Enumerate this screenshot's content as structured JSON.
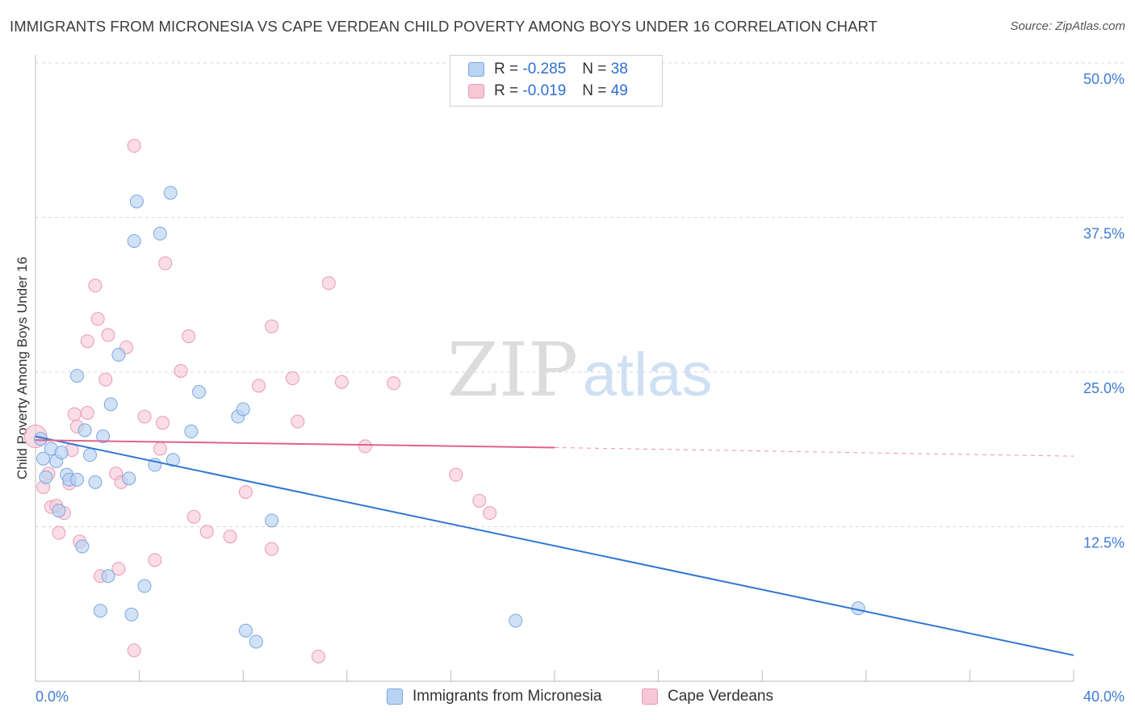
{
  "header": {
    "title": "IMMIGRANTS FROM MICRONESIA VS CAPE VERDEAN CHILD POVERTY AMONG BOYS UNDER 16 CORRELATION CHART",
    "source": "Source: ZipAtlas.com"
  },
  "watermark": {
    "zip": "ZIP",
    "atlas": "atlas"
  },
  "stats_legend": {
    "r_label": "R =",
    "n_label": "N =",
    "rows": [
      {
        "r": "-0.285",
        "n": "38"
      },
      {
        "r": "-0.019",
        "n": "49"
      }
    ]
  },
  "colors": {
    "blue_fill": "#b9d3f3",
    "blue_stroke": "#7aa7e0",
    "blue_line": "#3276d2",
    "pink_fill": "#f7c7d6",
    "pink_stroke": "#e99ab4",
    "pink_line": "#e0628e",
    "tick_text": "#3f7bd6",
    "grid": "#d9d9d9"
  },
  "chart_data": {
    "type": "scatter",
    "title": "IMMIGRANTS FROM MICRONESIA VS CAPE VERDEAN CHILD POVERTY AMONG BOYS UNDER 16 CORRELATION CHART",
    "xlabel": "",
    "ylabel": "Child Poverty Among Boys Under 16",
    "xlim": [
      0,
      40
    ],
    "ylim": [
      0,
      50
    ],
    "x_tick_labels": [
      "0.0%",
      "40.0%"
    ],
    "y_tick_labels": [
      "12.5%",
      "25.0%",
      "37.5%",
      "50.0%"
    ],
    "y_ticks": [
      12.5,
      25.0,
      37.5,
      50.0
    ],
    "grid": true,
    "legend_position": "bottom",
    "series": [
      {
        "name": "Immigrants from Micronesia",
        "color": "blue",
        "trend": {
          "x": [
            0,
            40
          ],
          "y": [
            19.8,
            2.1
          ],
          "dashed_from": null
        },
        "points": [
          [
            0.2,
            19.6
          ],
          [
            0.3,
            18.0
          ],
          [
            0.4,
            16.5
          ],
          [
            0.6,
            18.8
          ],
          [
            0.8,
            17.8
          ],
          [
            0.9,
            13.8
          ],
          [
            1.0,
            18.5
          ],
          [
            1.2,
            16.7
          ],
          [
            1.3,
            16.3
          ],
          [
            1.6,
            16.3
          ],
          [
            1.8,
            10.9
          ],
          [
            1.9,
            20.3
          ],
          [
            2.1,
            18.3
          ],
          [
            2.3,
            16.1
          ],
          [
            2.6,
            19.8
          ],
          [
            2.9,
            22.4
          ],
          [
            3.2,
            26.4
          ],
          [
            2.5,
            5.7
          ],
          [
            2.8,
            8.5
          ],
          [
            3.6,
            16.4
          ],
          [
            3.7,
            5.4
          ],
          [
            3.8,
            35.6
          ],
          [
            3.9,
            38.8
          ],
          [
            4.2,
            7.7
          ],
          [
            4.6,
            17.5
          ],
          [
            4.8,
            36.2
          ],
          [
            5.2,
            39.5
          ],
          [
            5.3,
            17.9
          ],
          [
            6.0,
            20.2
          ],
          [
            6.3,
            23.4
          ],
          [
            7.8,
            21.4
          ],
          [
            8.0,
            22.0
          ],
          [
            8.1,
            4.1
          ],
          [
            8.5,
            3.2
          ],
          [
            9.1,
            13.0
          ],
          [
            18.5,
            4.9
          ],
          [
            31.7,
            5.9
          ],
          [
            1.6,
            24.7
          ]
        ]
      },
      {
        "name": "Cape Verdeans",
        "color": "pink",
        "trend": {
          "x": [
            0,
            20
          ],
          "y": [
            19.5,
            18.9
          ],
          "dashed_to": [
            40,
            18.2
          ]
        },
        "points": [
          [
            0.0,
            19.8
          ],
          [
            0.3,
            15.7
          ],
          [
            0.5,
            16.8
          ],
          [
            0.6,
            14.1
          ],
          [
            0.8,
            14.2
          ],
          [
            0.9,
            12.0
          ],
          [
            1.1,
            13.6
          ],
          [
            1.3,
            16.0
          ],
          [
            1.4,
            18.7
          ],
          [
            1.5,
            21.6
          ],
          [
            1.6,
            20.6
          ],
          [
            1.7,
            11.3
          ],
          [
            2.0,
            21.7
          ],
          [
            2.0,
            27.5
          ],
          [
            2.3,
            32.0
          ],
          [
            2.4,
            29.3
          ],
          [
            2.5,
            8.5
          ],
          [
            2.7,
            24.4
          ],
          [
            2.8,
            28.0
          ],
          [
            3.1,
            16.8
          ],
          [
            3.2,
            9.1
          ],
          [
            3.3,
            16.1
          ],
          [
            3.5,
            27.0
          ],
          [
            3.8,
            43.3
          ],
          [
            3.8,
            2.5
          ],
          [
            4.2,
            21.4
          ],
          [
            4.6,
            9.8
          ],
          [
            4.8,
            18.8
          ],
          [
            4.9,
            20.9
          ],
          [
            5.0,
            33.8
          ],
          [
            5.6,
            25.1
          ],
          [
            5.9,
            27.9
          ],
          [
            6.1,
            13.3
          ],
          [
            6.6,
            12.1
          ],
          [
            7.5,
            11.7
          ],
          [
            8.1,
            15.3
          ],
          [
            8.6,
            23.9
          ],
          [
            9.1,
            10.7
          ],
          [
            9.1,
            28.7
          ],
          [
            9.9,
            24.5
          ],
          [
            10.1,
            21.0
          ],
          [
            10.9,
            2.0
          ],
          [
            11.3,
            32.2
          ],
          [
            11.8,
            24.2
          ],
          [
            12.7,
            19.0
          ],
          [
            13.8,
            24.1
          ],
          [
            16.2,
            16.7
          ],
          [
            17.1,
            14.6
          ],
          [
            17.5,
            13.6
          ]
        ]
      }
    ]
  },
  "bottom_legend": {
    "items": [
      {
        "label": "Immigrants from Micronesia"
      },
      {
        "label": "Cape Verdeans"
      }
    ]
  }
}
